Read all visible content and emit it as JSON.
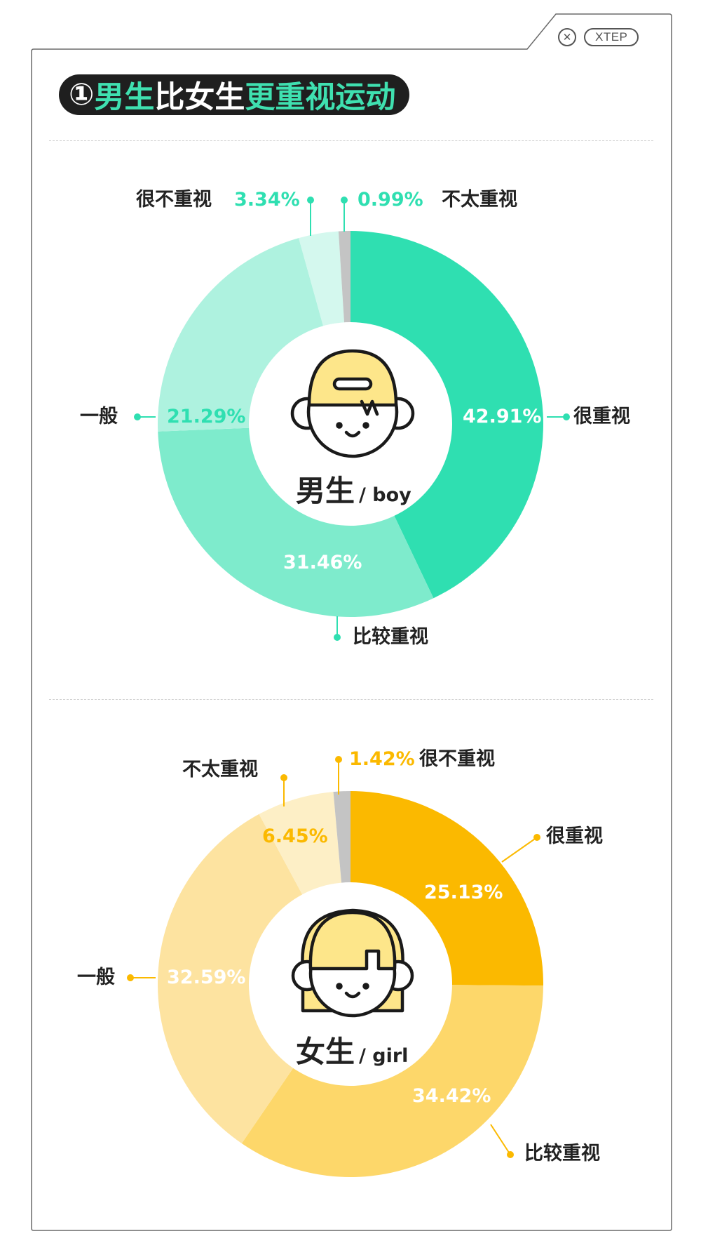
{
  "brand": {
    "name": "XTEP",
    "close_glyph": "✕"
  },
  "title": {
    "part1": "①",
    "part2": "男生",
    "part3": "比女生",
    "part4": "更重视运动"
  },
  "colors": {
    "boy_accent": "#2fdfb1",
    "girl_accent": "#fbb900",
    "gray_slice": "#c4c4c4"
  },
  "boy_center": {
    "name": "男生",
    "en": "/ boy"
  },
  "girl_center": {
    "name": "女生",
    "en": "/ girl"
  },
  "chart_data": [
    {
      "type": "pie",
      "subtype": "donut",
      "slices": [
        {
          "label": "很重视",
          "value": 42.91,
          "value_label": "42.91%",
          "color": "#2fdfb1"
        },
        {
          "label": "比较重视",
          "value": 31.46,
          "value_label": "31.46%",
          "color": "#7eebcc"
        },
        {
          "label": "一般",
          "value": 21.29,
          "value_label": "21.29%",
          "color": "#aef2df"
        },
        {
          "label": "很不重视",
          "value": 3.34,
          "value_label": "3.34%",
          "color": "#d4f8ee"
        },
        {
          "label": "不太重视",
          "value": 0.99,
          "value_label": "0.99%",
          "color": "#c4c4c4"
        }
      ]
    },
    {
      "type": "pie",
      "subtype": "donut",
      "slices": [
        {
          "label": "很重视",
          "value": 25.13,
          "value_label": "25.13%",
          "color": "#fbb900"
        },
        {
          "label": "比较重视",
          "value": 34.42,
          "value_label": "34.42%",
          "color": "#fdd76a"
        },
        {
          "label": "一般",
          "value": 32.59,
          "value_label": "32.59%",
          "color": "#fde3a0"
        },
        {
          "label": "不太重视",
          "value": 6.45,
          "value_label": "6.45%",
          "color": "#fdefc6"
        },
        {
          "label": "很不重视",
          "value": 1.42,
          "value_label": "1.42%",
          "color": "#c4c4c4"
        }
      ]
    }
  ]
}
